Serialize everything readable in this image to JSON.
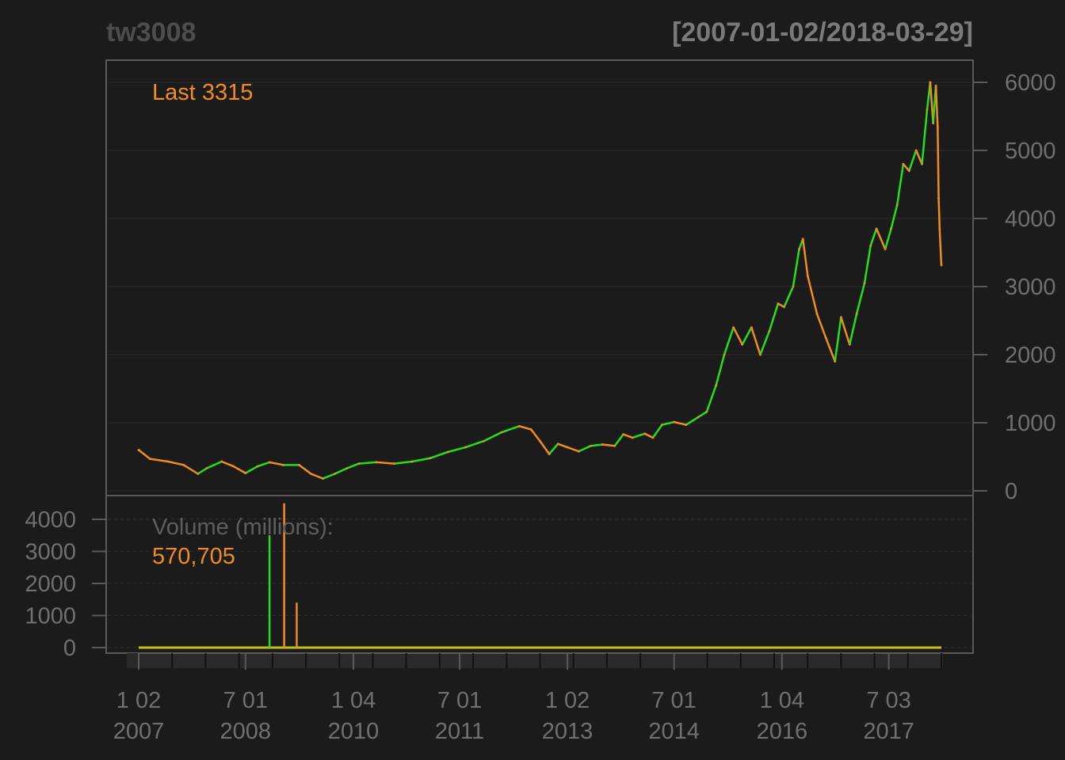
{
  "chart_data": {
    "type": "line",
    "title": "tw3008",
    "date_range": "[2007-01-02/2018-03-29]",
    "last_label": "Last 3315",
    "volume_label": "Volume (millions):",
    "volume_value": "570,705",
    "price_axis": {
      "ylim": [
        0,
        6000
      ],
      "ticks": [
        "0",
        "1000",
        "2000",
        "3000",
        "4000",
        "5000",
        "6000"
      ]
    },
    "volume_axis": {
      "ylim": [
        0,
        4000
      ],
      "ticks": [
        "0",
        "1000",
        "2000",
        "3000",
        "4000"
      ]
    },
    "x_ticks": [
      {
        "date": "2007-01-02",
        "label_top": "1 02",
        "label_bottom": "2007"
      },
      {
        "date": "2008-07-01",
        "label_top": "7 01",
        "label_bottom": "2008"
      },
      {
        "date": "2010-01-04",
        "label_top": "1 04",
        "label_bottom": "2010"
      },
      {
        "date": "2011-07-01",
        "label_top": "7 01",
        "label_bottom": "2011"
      },
      {
        "date": "2013-01-02",
        "label_top": "1 02",
        "label_bottom": "2013"
      },
      {
        "date": "2014-07-01",
        "label_top": "7 01",
        "label_bottom": "2014"
      },
      {
        "date": "2016-01-04",
        "label_top": "1 04",
        "label_bottom": "2016"
      },
      {
        "date": "2017-07-03",
        "label_top": "7 03",
        "label_bottom": "2017"
      }
    ],
    "series": [
      {
        "values": [
          [
            "2007-01-02",
            600
          ],
          [
            "2007-03-01",
            470
          ],
          [
            "2007-06-01",
            430
          ],
          [
            "2007-08-20",
            380
          ],
          [
            "2007-11-01",
            250
          ],
          [
            "2007-12-15",
            330
          ],
          [
            "2008-03-01",
            430
          ],
          [
            "2008-05-01",
            360
          ],
          [
            "2008-07-01",
            260
          ],
          [
            "2008-09-01",
            360
          ],
          [
            "2008-11-01",
            420
          ],
          [
            "2009-01-10",
            380
          ],
          [
            "2009-04-01",
            380
          ],
          [
            "2009-06-01",
            250
          ],
          [
            "2009-08-01",
            180
          ],
          [
            "2009-10-01",
            250
          ],
          [
            "2009-12-01",
            330
          ],
          [
            "2010-02-01",
            400
          ],
          [
            "2010-05-01",
            420
          ],
          [
            "2010-08-01",
            400
          ],
          [
            "2010-11-01",
            430
          ],
          [
            "2011-02-01",
            480
          ],
          [
            "2011-05-01",
            570
          ],
          [
            "2011-08-01",
            640
          ],
          [
            "2011-11-01",
            730
          ],
          [
            "2012-02-01",
            860
          ],
          [
            "2012-05-01",
            950
          ],
          [
            "2012-07-01",
            900
          ],
          [
            "2012-08-15",
            730
          ],
          [
            "2012-10-01",
            540
          ],
          [
            "2012-11-15",
            690
          ],
          [
            "2013-01-01",
            640
          ],
          [
            "2013-03-01",
            580
          ],
          [
            "2013-05-01",
            660
          ],
          [
            "2013-07-01",
            680
          ],
          [
            "2013-09-01",
            660
          ],
          [
            "2013-10-15",
            830
          ],
          [
            "2013-12-01",
            780
          ],
          [
            "2014-02-01",
            840
          ],
          [
            "2014-03-15",
            780
          ],
          [
            "2014-05-01",
            970
          ],
          [
            "2014-07-01",
            1010
          ],
          [
            "2014-09-01",
            970
          ],
          [
            "2014-11-01",
            1080
          ],
          [
            "2014-12-15",
            1160
          ],
          [
            "2015-02-01",
            1550
          ],
          [
            "2015-03-15",
            2000
          ],
          [
            "2015-05-01",
            2400
          ],
          [
            "2015-06-15",
            2150
          ],
          [
            "2015-08-01",
            2400
          ],
          [
            "2015-09-15",
            2000
          ],
          [
            "2015-11-01",
            2350
          ],
          [
            "2015-12-15",
            2750
          ],
          [
            "2016-01-15",
            2700
          ],
          [
            "2016-03-01",
            3000
          ],
          [
            "2016-04-01",
            3550
          ],
          [
            "2016-04-20",
            3700
          ],
          [
            "2016-05-15",
            3150
          ],
          [
            "2016-07-01",
            2600
          ],
          [
            "2016-08-15",
            2250
          ],
          [
            "2016-10-01",
            1900
          ],
          [
            "2016-11-01",
            2550
          ],
          [
            "2016-12-15",
            2150
          ],
          [
            "2017-01-20",
            2600
          ],
          [
            "2017-03-01",
            3050
          ],
          [
            "2017-04-01",
            3600
          ],
          [
            "2017-05-01",
            3850
          ],
          [
            "2017-06-15",
            3550
          ],
          [
            "2017-07-15",
            3850
          ],
          [
            "2017-08-15",
            4200
          ],
          [
            "2017-09-15",
            4800
          ],
          [
            "2017-10-15",
            4700
          ],
          [
            "2017-11-20",
            5000
          ],
          [
            "2017-12-20",
            4800
          ],
          [
            "2018-01-15",
            5600
          ],
          [
            "2018-01-31",
            6000
          ],
          [
            "2018-02-15",
            5400
          ],
          [
            "2018-03-01",
            5950
          ],
          [
            "2018-03-10",
            5350
          ],
          [
            "2018-03-15",
            4300
          ],
          [
            "2018-03-20",
            3850
          ],
          [
            "2018-03-24",
            3600
          ],
          [
            "2018-03-29",
            3315
          ]
        ]
      }
    ],
    "volume_bars": [
      {
        "date": "2008-11-01",
        "value": 3500,
        "color": "#22e01a"
      },
      {
        "date": "2009-01-15",
        "value": 4500,
        "color": "#f28c1d"
      },
      {
        "date": "2009-03-20",
        "value": 1400,
        "color": "#f28c1d"
      }
    ],
    "colors": {
      "background": "#1b1b1b",
      "up": "#22e01a",
      "down": "#f28c1d",
      "frame": "#5a5a5a",
      "grid": "#2c2c2c"
    },
    "grid": true
  }
}
